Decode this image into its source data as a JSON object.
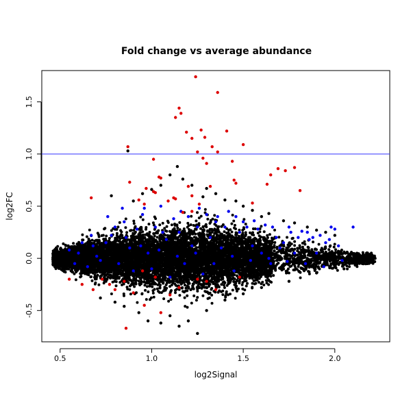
{
  "chart_data": {
    "type": "scatter",
    "title": "Fold change vs average abundance",
    "xlabel": "log2Signal",
    "ylabel": "log2FC",
    "xlim": [
      0.4,
      2.3
    ],
    "ylim": [
      -0.8,
      1.8
    ],
    "xticks": [
      0.5,
      1.0,
      1.5,
      2.0
    ],
    "xtick_labels": [
      "0.5",
      "1.0",
      "1.5",
      "2.0"
    ],
    "yticks": [
      -0.5,
      0.0,
      0.5,
      1.0,
      1.5
    ],
    "ytick_labels": [
      "-0.5",
      "0.0",
      "0.5",
      "1.0",
      "1.5"
    ],
    "grid": false,
    "reference_line": {
      "y": 1.0,
      "color": "#3333ff"
    },
    "colors": {
      "background_points": "#000000",
      "highlight_blue": "#0000ee",
      "highlight_red": "#dd0000"
    },
    "series": [
      {
        "color": "#000000",
        "outliers": [
          [
            0.87,
            1.03
          ],
          [
            1.14,
            0.88
          ],
          [
            1.1,
            0.8
          ],
          [
            1.22,
            0.7
          ],
          [
            1.17,
            0.76
          ],
          [
            1.3,
            0.67
          ],
          [
            1.35,
            0.62
          ],
          [
            1.28,
            0.59
          ],
          [
            1.4,
            0.56
          ],
          [
            1.46,
            0.55
          ],
          [
            1.5,
            0.5
          ],
          [
            1.55,
            0.46
          ],
          [
            0.95,
            0.62
          ],
          [
            0.9,
            0.55
          ],
          [
            0.78,
            0.6
          ],
          [
            1.0,
            0.66
          ],
          [
            1.05,
            0.7
          ],
          [
            1.6,
            0.4
          ],
          [
            1.64,
            0.43
          ],
          [
            1.72,
            0.36
          ],
          [
            1.78,
            0.34
          ],
          [
            1.85,
            0.3
          ],
          [
            1.9,
            0.27
          ],
          [
            1.95,
            0.25
          ],
          [
            2.0,
            0.22
          ],
          [
            1.25,
            -0.72
          ],
          [
            1.15,
            -0.65
          ],
          [
            1.05,
            -0.62
          ],
          [
            0.98,
            -0.6
          ],
          [
            1.1,
            -0.55
          ],
          [
            1.2,
            -0.6
          ],
          [
            1.3,
            -0.5
          ],
          [
            0.93,
            -0.52
          ],
          [
            1.4,
            -0.4
          ],
          [
            1.5,
            -0.34
          ],
          [
            1.6,
            -0.28
          ],
          [
            1.75,
            -0.22
          ],
          [
            1.9,
            -0.14
          ],
          [
            2.05,
            -0.1
          ],
          [
            2.15,
            -0.05
          ],
          [
            2.22,
            0.0
          ],
          [
            2.18,
            0.03
          ],
          [
            2.2,
            -0.02
          ],
          [
            0.72,
            -0.38
          ],
          [
            0.8,
            -0.42
          ],
          [
            0.85,
            -0.46
          ]
        ]
      },
      {
        "color": "#0000ee",
        "points": [
          [
            0.55,
            0.08
          ],
          [
            0.6,
            0.05
          ],
          [
            0.65,
            -0.08
          ],
          [
            0.7,
            0.02
          ],
          [
            0.75,
            0.15
          ],
          [
            0.78,
            0.22
          ],
          [
            0.82,
            -0.05
          ],
          [
            0.85,
            0.35
          ],
          [
            0.88,
            0.1
          ],
          [
            0.9,
            -0.12
          ],
          [
            0.92,
            0.28
          ],
          [
            0.95,
            0.42
          ],
          [
            0.98,
            0.05
          ],
          [
            1.0,
            -0.1
          ],
          [
            1.02,
            0.3
          ],
          [
            1.05,
            0.5
          ],
          [
            1.08,
            0.18
          ],
          [
            1.1,
            -0.18
          ],
          [
            1.12,
            0.38
          ],
          [
            1.15,
            0.25
          ],
          [
            1.18,
            -0.05
          ],
          [
            1.2,
            0.4
          ],
          [
            1.22,
            0.12
          ],
          [
            1.25,
            0.3
          ],
          [
            1.28,
            -0.15
          ],
          [
            1.3,
            0.42
          ],
          [
            1.32,
            0.2
          ],
          [
            1.35,
            0.35
          ],
          [
            1.38,
            0.1
          ],
          [
            1.4,
            0.3
          ],
          [
            1.42,
            0.45
          ],
          [
            1.45,
            -0.12
          ],
          [
            1.48,
            0.25
          ],
          [
            1.5,
            0.35
          ],
          [
            1.52,
            0.3
          ],
          [
            1.55,
            0.12
          ],
          [
            1.58,
            0.28
          ],
          [
            1.6,
            0.05
          ],
          [
            1.62,
            0.32
          ],
          [
            1.65,
            -0.05
          ],
          [
            1.68,
            0.2
          ],
          [
            1.7,
            0.1
          ],
          [
            1.72,
            0.15
          ],
          [
            1.75,
            0.3
          ],
          [
            1.78,
            0.05
          ],
          [
            1.8,
            0.2
          ],
          [
            1.85,
            0.25
          ],
          [
            1.9,
            0.05
          ],
          [
            1.92,
            0.22
          ],
          [
            1.95,
            0.15
          ],
          [
            1.98,
            0.3
          ],
          [
            2.0,
            0.28
          ],
          [
            0.62,
            0.15
          ],
          [
            0.68,
            0.12
          ],
          [
            0.72,
            -0.02
          ],
          [
            0.8,
            0.3
          ],
          [
            0.86,
            0.2
          ],
          [
            0.94,
            0.12
          ],
          [
            1.04,
            0.08
          ],
          [
            1.14,
            0.02
          ],
          [
            1.24,
            0.05
          ],
          [
            1.34,
            -0.05
          ],
          [
            1.44,
            0.02
          ],
          [
            1.54,
            -0.02
          ],
          [
            1.64,
            0.0
          ],
          [
            1.74,
            -0.03
          ],
          [
            1.84,
            -0.05
          ],
          [
            1.94,
            -0.08
          ],
          [
            2.04,
            -0.02
          ],
          [
            0.58,
            -0.05
          ],
          [
            0.67,
            0.22
          ],
          [
            0.76,
            0.4
          ],
          [
            0.84,
            0.48
          ],
          [
            0.96,
            0.48
          ],
          [
            1.06,
            0.25
          ],
          [
            1.16,
            0.45
          ],
          [
            1.26,
            0.48
          ],
          [
            1.36,
            0.4
          ],
          [
            1.46,
            0.4
          ],
          [
            1.56,
            0.36
          ],
          [
            1.66,
            0.3
          ],
          [
            1.76,
            0.25
          ],
          [
            1.86,
            0.18
          ],
          [
            2.1,
            0.3
          ],
          [
            1.82,
            0.26
          ],
          [
            1.88,
            0.2
          ],
          [
            1.97,
            0.18
          ],
          [
            2.02,
            0.12
          ]
        ]
      },
      {
        "color": "#dd0000",
        "points": [
          [
            1.24,
            1.74
          ],
          [
            1.36,
            1.59
          ],
          [
            1.15,
            1.44
          ],
          [
            1.16,
            1.39
          ],
          [
            1.13,
            1.35
          ],
          [
            1.19,
            1.21
          ],
          [
            1.27,
            1.23
          ],
          [
            1.41,
            1.22
          ],
          [
            1.29,
            1.16
          ],
          [
            1.22,
            1.15
          ],
          [
            1.33,
            1.07
          ],
          [
            1.5,
            1.09
          ],
          [
            0.87,
            1.07
          ],
          [
            1.25,
            1.02
          ],
          [
            1.36,
            1.02
          ],
          [
            1.28,
            0.96
          ],
          [
            1.01,
            0.95
          ],
          [
            1.3,
            0.91
          ],
          [
            1.44,
            0.93
          ],
          [
            1.69,
            0.86
          ],
          [
            1.78,
            0.87
          ],
          [
            1.73,
            0.84
          ],
          [
            1.04,
            0.78
          ],
          [
            1.05,
            0.77
          ],
          [
            1.65,
            0.8
          ],
          [
            1.45,
            0.75
          ],
          [
            1.46,
            0.72
          ],
          [
            1.63,
            0.71
          ],
          [
            1.32,
            0.69
          ],
          [
            1.01,
            0.64
          ],
          [
            1.2,
            0.69
          ],
          [
            1.22,
            0.6
          ],
          [
            1.81,
            0.65
          ],
          [
            1.12,
            0.58
          ],
          [
            1.09,
            0.55
          ],
          [
            1.13,
            0.57
          ],
          [
            0.88,
            0.73
          ],
          [
            0.97,
            0.67
          ],
          [
            1.02,
            0.63
          ],
          [
            0.67,
            0.58
          ],
          [
            0.93,
            0.56
          ],
          [
            0.96,
            0.52
          ],
          [
            1.17,
            0.44
          ],
          [
            1.22,
            0.45
          ],
          [
            1.26,
            0.52
          ],
          [
            1.55,
            0.53
          ],
          [
            0.86,
            -0.67
          ],
          [
            1.05,
            -0.52
          ],
          [
            0.96,
            -0.45
          ],
          [
            1.1,
            -0.35
          ],
          [
            0.8,
            -0.3
          ],
          [
            0.85,
            -0.22
          ],
          [
            1.15,
            -0.28
          ],
          [
            0.62,
            -0.25
          ],
          [
            0.55,
            -0.2
          ],
          [
            0.73,
            -0.2
          ],
          [
            1.35,
            -0.3
          ],
          [
            0.68,
            -0.3
          ],
          [
            0.9,
            -0.33
          ],
          [
            1.02,
            -0.18
          ],
          [
            1.3,
            -0.22
          ],
          [
            0.77,
            -0.25
          ],
          [
            0.95,
            -0.12
          ],
          [
            1.48,
            -0.18
          ],
          [
            1.25,
            -0.2
          ]
        ]
      }
    ]
  }
}
